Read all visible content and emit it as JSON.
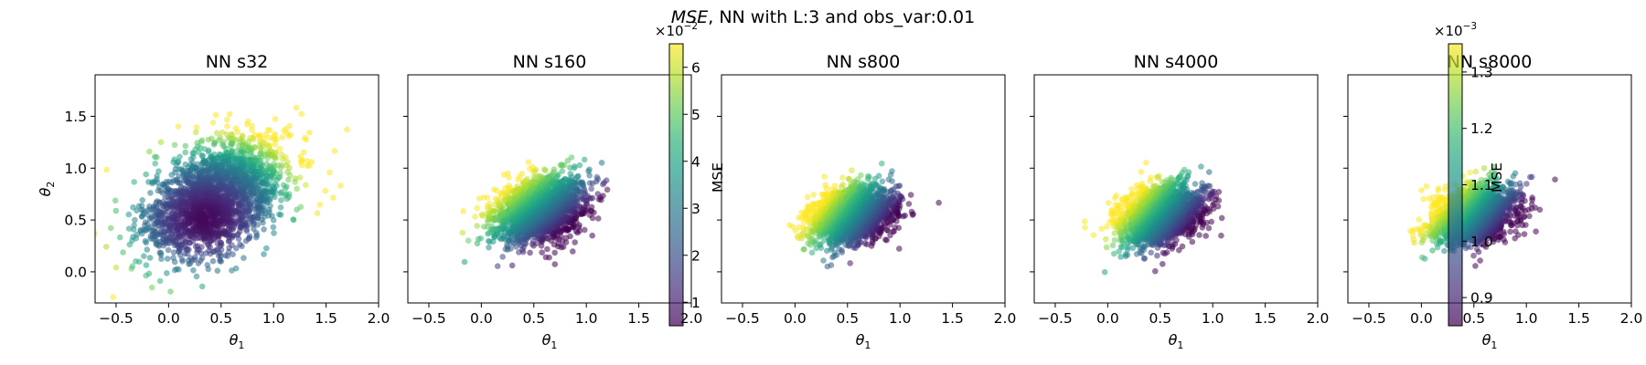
{
  "figure": {
    "title_italic": "MSE",
    "title_rest": ", NN with L:3 and obs_var:0.01"
  },
  "chart_data": [
    {
      "type": "scatter",
      "title": "NN s32",
      "xlabel": "θ1",
      "ylabel": "θ2",
      "xlim": [
        -0.7,
        2.0
      ],
      "ylim": [
        -0.3,
        1.9
      ],
      "xticks": [
        "−0.5",
        "0.0",
        "0.5",
        "1.0",
        "1.5",
        "2.0"
      ],
      "yticks": [
        "0.0",
        "0.5",
        "1.0",
        "1.5"
      ],
      "cloud": {
        "center_x": 0.45,
        "center_y": 0.72,
        "sd_x": 0.33,
        "sd_y": 0.28,
        "corr": 0.45,
        "point_count": 2200
      },
      "color_trend": "MSE rises toward the upper right; darkest near (0.3, 0.5)",
      "colorbar": null
    },
    {
      "type": "scatter",
      "title": "NN s160",
      "xlabel": "θ1",
      "ylabel": "",
      "xlim": [
        -0.7,
        2.0
      ],
      "ylim": [
        -0.3,
        1.9
      ],
      "xticks": [
        "−0.5",
        "0.0",
        "0.5",
        "1.0",
        "1.5",
        "2.0"
      ],
      "yticks": [],
      "cloud": {
        "center_x": 0.55,
        "center_y": 0.6,
        "sd_x": 0.22,
        "sd_y": 0.16,
        "corr": 0.3,
        "point_count": 1800
      },
      "color_trend": "MSE rises toward the upper left; lowest at lower right",
      "colorbar": {
        "label": "MSE",
        "multiplier": "×10",
        "exponent": "−2",
        "range": [
          0.5,
          6.5
        ],
        "ticks": [
          "1",
          "2",
          "3",
          "4",
          "5",
          "6"
        ]
      }
    },
    {
      "type": "scatter",
      "title": "NN s800",
      "xlabel": "θ1",
      "ylabel": "",
      "xlim": [
        -0.7,
        2.0
      ],
      "ylim": [
        -0.3,
        1.9
      ],
      "xticks": [
        "−0.5",
        "0.0",
        "0.5",
        "1.0",
        "1.5",
        "2.0"
      ],
      "yticks": [],
      "cloud": {
        "center_x": 0.55,
        "center_y": 0.55,
        "sd_x": 0.2,
        "sd_y": 0.14,
        "corr": 0.3,
        "point_count": 1800
      },
      "color_trend": "MSE rises toward the upper left; lowest at right",
      "colorbar": null
    },
    {
      "type": "scatter",
      "title": "NN s4000",
      "xlabel": "θ1",
      "ylabel": "",
      "xlim": [
        -0.7,
        2.0
      ],
      "ylim": [
        -0.3,
        1.9
      ],
      "xticks": [
        "−0.5",
        "0.0",
        "0.5",
        "1.0",
        "1.5",
        "2.0"
      ],
      "yticks": [],
      "cloud": {
        "center_x": 0.5,
        "center_y": 0.55,
        "sd_x": 0.2,
        "sd_y": 0.15,
        "corr": 0.3,
        "point_count": 1800
      },
      "color_trend": "MSE rises toward the upper left; lowest at right",
      "colorbar": null
    },
    {
      "type": "scatter",
      "title": "NN s8000",
      "xlabel": "θ1",
      "ylabel": "",
      "xlim": [
        -0.7,
        2.0
      ],
      "ylim": [
        -0.3,
        1.9
      ],
      "xticks": [
        "−0.5",
        "0.0",
        "0.5",
        "1.0",
        "1.5",
        "2.0"
      ],
      "yticks": [],
      "cloud": {
        "center_x": 0.5,
        "center_y": 0.55,
        "sd_x": 0.2,
        "sd_y": 0.14,
        "corr": 0.3,
        "point_count": 1800
      },
      "color_trend": "MSE rises toward the upper left; lowest at right",
      "colorbar": {
        "label": "MSE",
        "multiplier": "×10",
        "exponent": "−3",
        "range": [
          0.85,
          1.35
        ],
        "ticks": [
          "0.9",
          "1.0",
          "1.1",
          "1.2",
          "1.3"
        ],
        "tick_values": [
          0.9,
          1.0,
          1.1,
          1.2,
          1.3
        ]
      }
    }
  ],
  "colormap": {
    "name": "viridis",
    "stops": [
      "#440154",
      "#482878",
      "#3e4989",
      "#31688e",
      "#26828e",
      "#1f9e89",
      "#35b779",
      "#6ece58",
      "#b5de2b",
      "#fde725"
    ],
    "alpha": 0.55
  }
}
